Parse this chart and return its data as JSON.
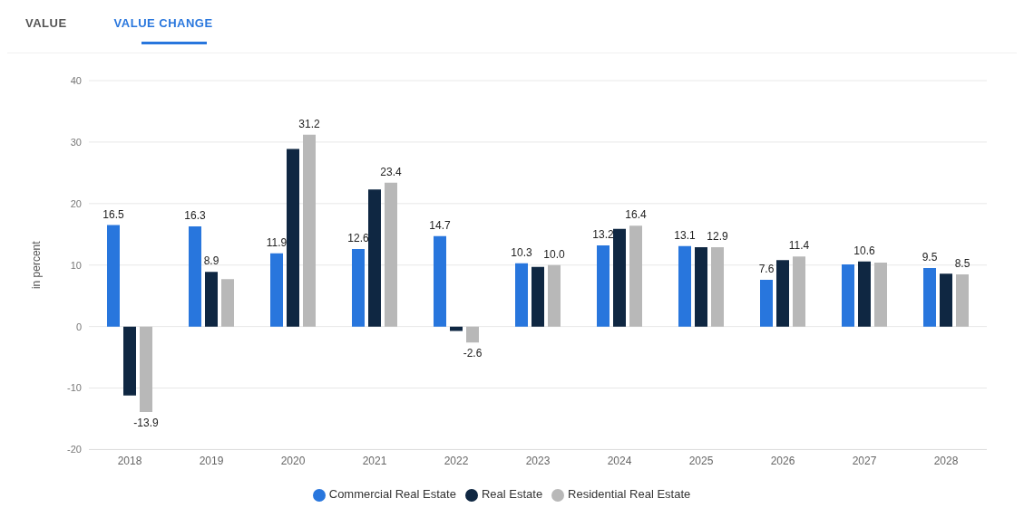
{
  "chart_data": {
    "type": "bar",
    "ylabel": "in percent",
    "annotations": [
      "VALUE",
      "VALUE CHANGE"
    ],
    "categories": [
      "2018",
      "2019",
      "2020",
      "2021",
      "2022",
      "2023",
      "2024",
      "2025",
      "2026",
      "2027",
      "2028"
    ],
    "series": [
      {
        "name": "Commercial Real Estate",
        "color": "#2876dd",
        "values": [
          16.5,
          16.3,
          11.9,
          12.6,
          14.7,
          10.3,
          13.2,
          13.1,
          7.6,
          10.1,
          9.5
        ],
        "value_labels": [
          "16.5",
          "16.3",
          "11.9",
          "12.6",
          "14.7",
          "10.3",
          "13.2",
          "13.1",
          "7.6",
          null,
          "9.5"
        ]
      },
      {
        "name": "Real Estate",
        "color": "#0f2742",
        "values": [
          -11.2,
          8.9,
          28.9,
          22.3,
          -0.7,
          9.7,
          15.9,
          12.9,
          10.8,
          10.6,
          8.6
        ],
        "value_labels": [
          null,
          "8.9",
          null,
          null,
          null,
          null,
          null,
          null,
          null,
          "10.6",
          null
        ]
      },
      {
        "name": "Residential Real Estate",
        "color": "#b8b8b8",
        "values": [
          -13.9,
          7.7,
          31.2,
          23.4,
          -2.6,
          10.0,
          16.4,
          12.9,
          11.4,
          10.4,
          8.5
        ],
        "value_labels": [
          "-13.9",
          null,
          "31.2",
          "23.4",
          "-2.6",
          "10.0",
          "16.4",
          "12.9",
          "11.4",
          null,
          "8.5"
        ]
      }
    ],
    "ylim": [
      -20,
      40
    ],
    "yticks": [
      -20,
      -10,
      0,
      10,
      20,
      30,
      40
    ],
    "grid": "y",
    "legend": "bottom"
  }
}
